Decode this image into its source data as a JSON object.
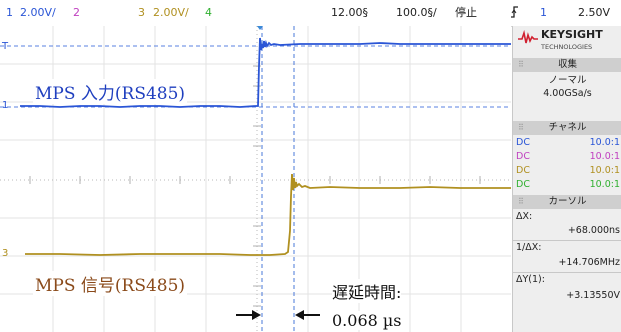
{
  "topbar": {
    "ch1_num": "1",
    "ch1_scale": "2.00V/",
    "ch2_num": "2",
    "ch3_num": "3",
    "ch3_scale": "2.00V/",
    "ch4_num": "4",
    "position": "12.00§",
    "timebase": "100.0§/",
    "run_state": "停止",
    "trigger_icon": "trigger-edge-icon",
    "trigger_channel": "1",
    "trigger_level": "2.50V"
  },
  "screen": {
    "ch1_marker": "1",
    "ch3_marker": "3",
    "trigger_marker": "T",
    "label_mps_input": "MPS 入力(RS485)",
    "label_mps_signal": "MPS 信号(RS485)",
    "delay_label": "遅延時間:",
    "delay_value": "0.068 µs"
  },
  "panel": {
    "brand": "KEYSIGHT",
    "brand_sub": "TECHNOLOGIES",
    "acq_header": "収集",
    "acq_mode": "ノーマル",
    "acq_rate": "4.00GSa/s",
    "channel_header": "チャネル",
    "channels": [
      {
        "coupling": "DC",
        "probe": "10.0:1",
        "color": "#2a55d6"
      },
      {
        "coupling": "DC",
        "probe": "10.0:1",
        "color": "#c040c0"
      },
      {
        "coupling": "DC",
        "probe": "10.0:1",
        "color": "#b09020"
      },
      {
        "coupling": "DC",
        "probe": "10.0:1",
        "color": "#30b030"
      }
    ],
    "cursor_header": "カーソル",
    "dx_label": "ΔX:",
    "dx_value": "+68.000ns",
    "inv_dx_label": "1/ΔX:",
    "inv_dx_value": "+14.706MHz",
    "dy_label": "ΔY(1):",
    "dy_value": "+3.13550V"
  },
  "colors": {
    "ch1": "#2a55d6",
    "ch3": "#b09020",
    "label_blue": "#1f3fbf",
    "label_brown": "#8a4a1a"
  }
}
